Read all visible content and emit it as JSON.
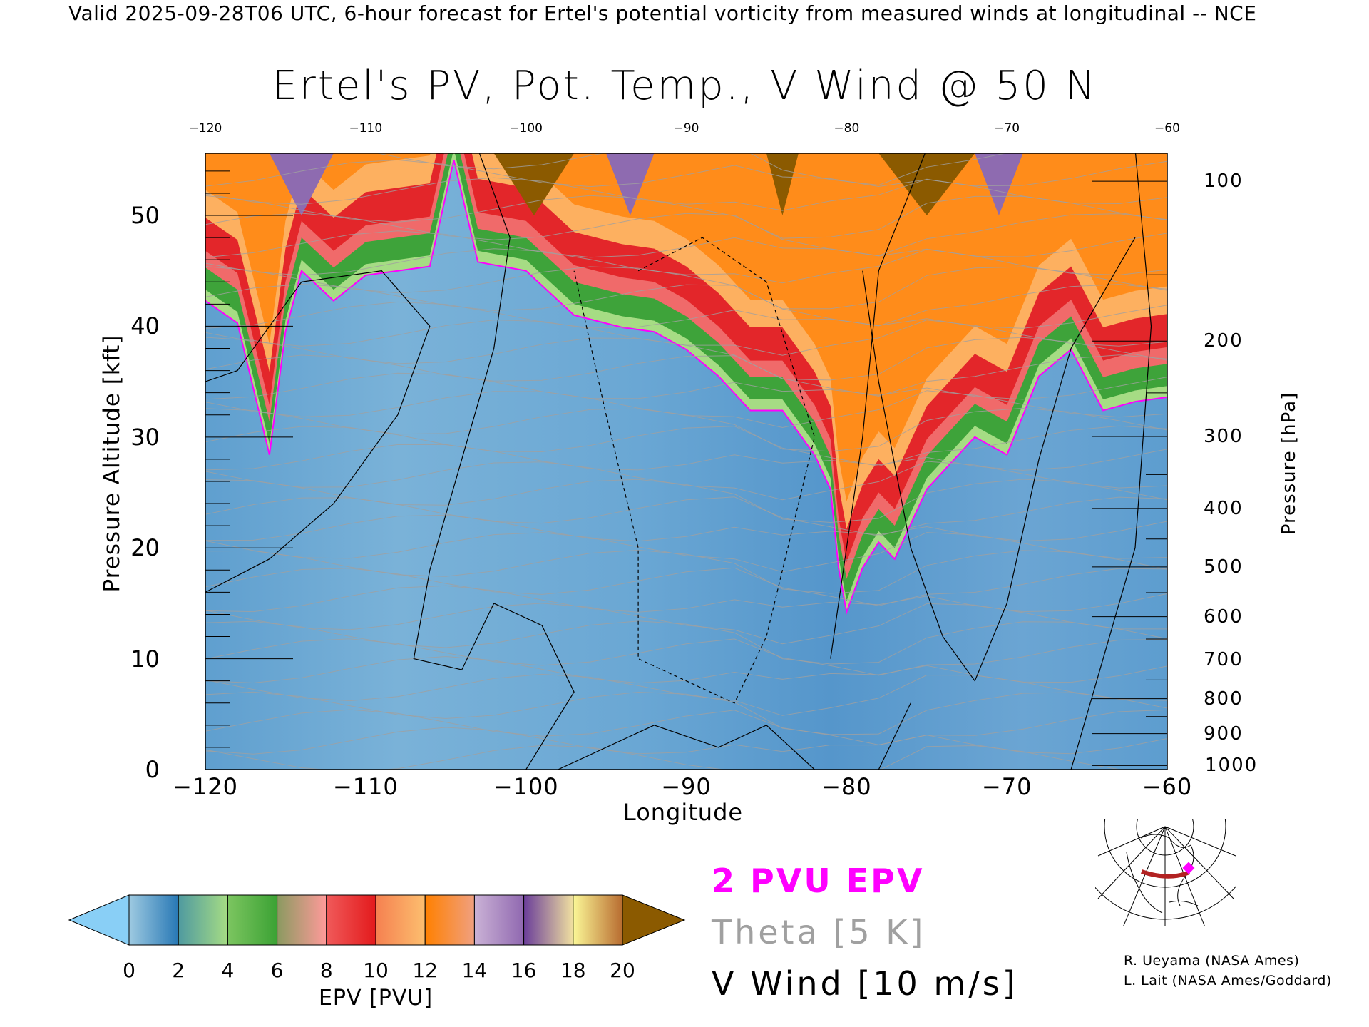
{
  "header": {
    "subtitle": "Valid 2025-09-28T06 UTC, 6-hour forecast for Ertel's potential vorticity from measured winds at longitudinal -- NCE",
    "title": "Ertel's PV, Pot. Temp., V Wind @ 50 N"
  },
  "chart_data": {
    "type": "heatmap",
    "title": "Ertel's PV, Pot. Temp., V Wind @ 50 N",
    "xlabel": "Longitude",
    "ylabel_left": "Pressure Altitude [kft]",
    "ylabel_right": "Pressure [hPa]",
    "xlim": [
      -120,
      -60
    ],
    "ylim": [
      0,
      55.6
    ],
    "x_ticks": [
      -120,
      -110,
      -100,
      -90,
      -80,
      -70,
      -60
    ],
    "x_tick_labels": [
      "−120",
      "−110",
      "−100",
      "−90",
      "−80",
      "−70",
      "−60"
    ],
    "y_ticks_left": [
      0,
      10,
      20,
      30,
      40,
      50
    ],
    "y_tick_labels_left": [
      "0",
      "10",
      "20",
      "30",
      "40",
      "50"
    ],
    "y_ticks_right_hpa": [
      100,
      200,
      300,
      400,
      500,
      600,
      700,
      800,
      900,
      1000
    ],
    "y_tick_labels_right": [
      "100",
      "200",
      "300",
      "400",
      "500",
      "600",
      "700",
      "800",
      "900",
      "1000"
    ],
    "tropopause_2pvu": {
      "name": "2 PVU EPV",
      "lon": [
        -120,
        -118,
        -116,
        -115,
        -114,
        -112,
        -110,
        -108,
        -106,
        -104.5,
        -103,
        -100,
        -97,
        -94,
        -92,
        -90,
        -88,
        -86,
        -84,
        -82,
        -81,
        -80.5,
        -80,
        -79,
        -78,
        -77,
        -75,
        -72,
        -70,
        -68,
        -66,
        -64,
        -62,
        -60
      ],
      "kft": [
        42.3,
        40.3,
        28.4,
        39.5,
        45,
        42.3,
        44.6,
        45,
        45.4,
        55,
        45.8,
        45,
        41,
        39.9,
        39.5,
        37.9,
        35.5,
        32.4,
        32.4,
        28.4,
        25.3,
        18.2,
        14.2,
        18.2,
        20.5,
        19,
        25.3,
        30,
        28.4,
        35.5,
        37.9,
        32.4,
        33.2,
        33.6
      ]
    },
    "colorbar": {
      "label": "EPV [PVU]",
      "range": [
        0,
        20
      ],
      "ticks": [
        "0",
        "2",
        "4",
        "6",
        "8",
        "10",
        "12",
        "14",
        "16",
        "18",
        "20"
      ],
      "colors": [
        "#89cff6",
        "#9ecae1",
        "#2878b5",
        "#a6dc84",
        "#3ba234",
        "#ff9a9a",
        "#e31a1c",
        "#fdbf6f",
        "#ff8000",
        "#cab2d6",
        "#6a3d9a",
        "#fbf797",
        "#8b5a00"
      ]
    },
    "legend": {
      "pv": "2 PVU EPV",
      "theta": "Theta [5 K]",
      "wind": "V Wind [10 m/s]"
    }
  },
  "colors": {
    "pv": "#ff00ff",
    "theta": "#a0a0a0",
    "wind": "#000000",
    "section": "#b22222"
  },
  "credits": [
    "R. Ueyama (NASA Ames)",
    "L. Lait (NASA Ames/Goddard)"
  ]
}
